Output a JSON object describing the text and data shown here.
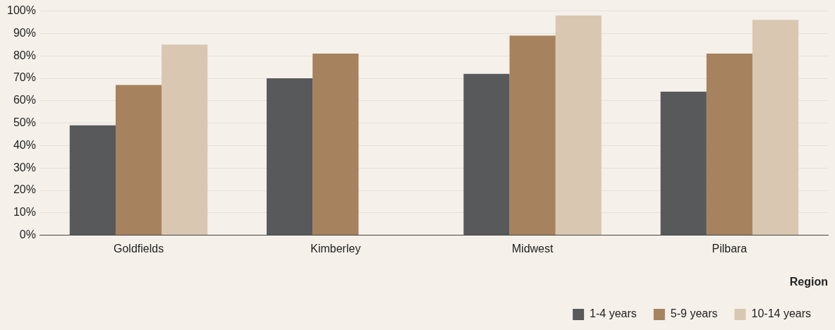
{
  "chart_data": {
    "type": "bar",
    "xlabel": "Region",
    "categories": [
      "Goldfields",
      "Kimberley",
      "Midwest",
      "Pilbara"
    ],
    "series": [
      {
        "name": "1-4 years",
        "color": "#58595b",
        "values": [
          49,
          70,
          72,
          64
        ]
      },
      {
        "name": "5-9 years",
        "color": "#a6825e",
        "values": [
          67,
          81,
          89,
          81
        ]
      },
      {
        "name": "10-14 years",
        "color": "#d9c7b2",
        "values": [
          85,
          null,
          98,
          96
        ]
      }
    ],
    "ylim": [
      0,
      100
    ],
    "yticks": [
      {
        "value": 0,
        "label": "0%"
      },
      {
        "value": 10,
        "label": "10%"
      },
      {
        "value": 20,
        "label": "20%"
      },
      {
        "value": 30,
        "label": "30%"
      },
      {
        "value": 40,
        "label": "40%"
      },
      {
        "value": 50,
        "label": "50%"
      },
      {
        "value": 60,
        "label": "60%"
      },
      {
        "value": 70,
        "label": "70%"
      },
      {
        "value": 80,
        "label": "80%"
      },
      {
        "value": 90,
        "label": "90%"
      },
      {
        "value": 100,
        "label": "100%"
      }
    ],
    "grid": "y",
    "legend": "bottom right"
  }
}
